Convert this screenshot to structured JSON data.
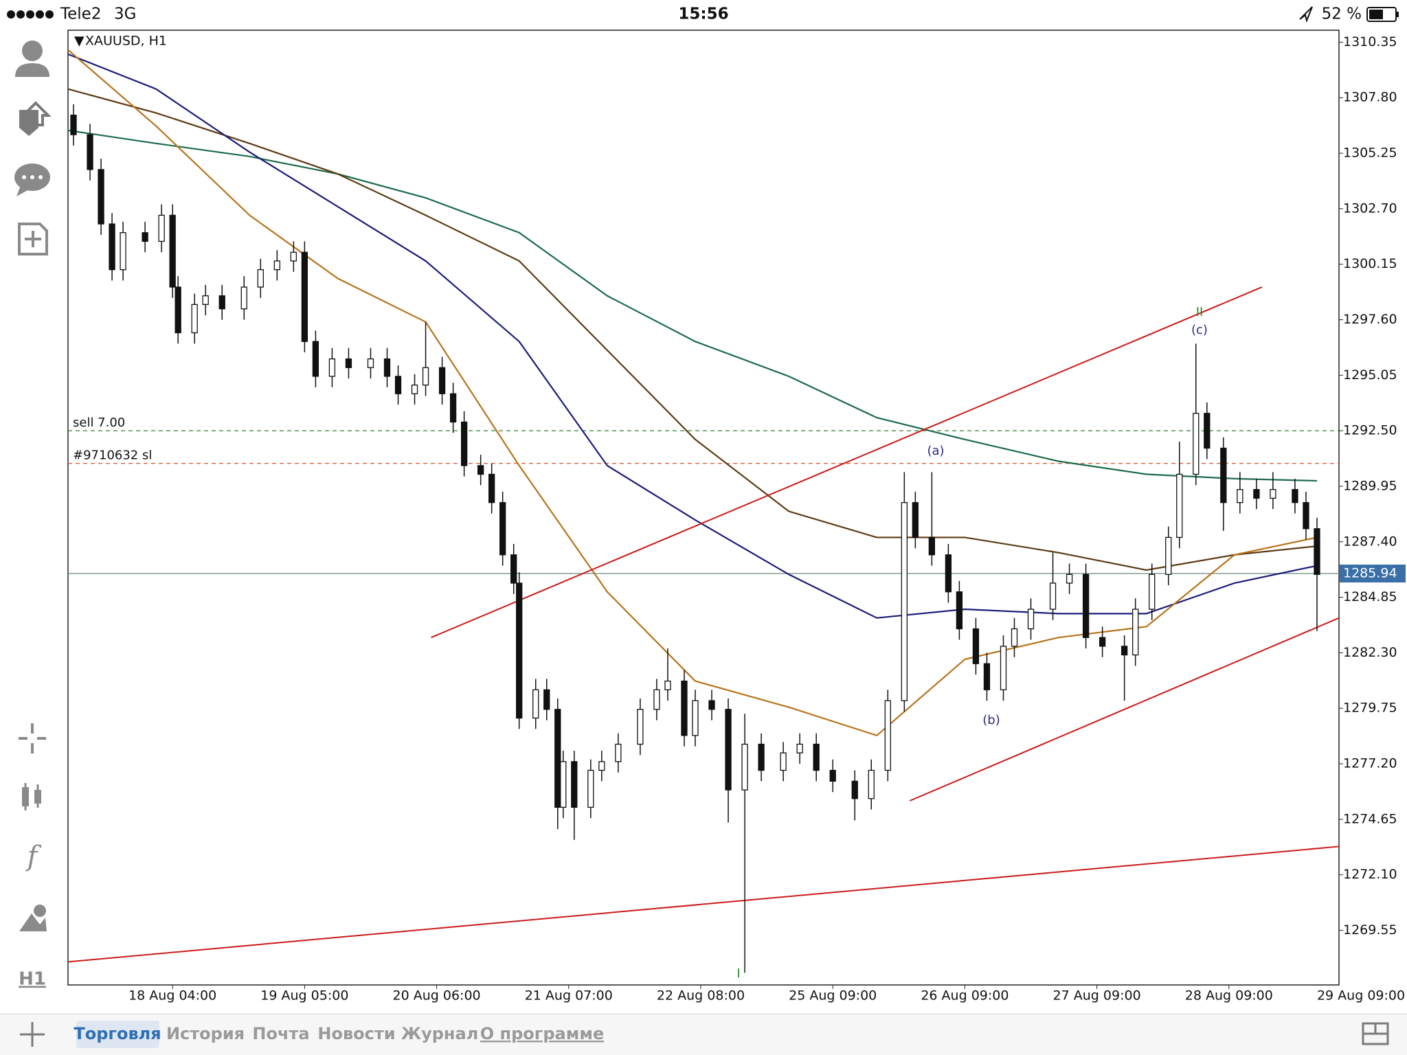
{
  "status_bar": {
    "carrier": "Tele2",
    "network": "3G",
    "time": "15:56",
    "battery": "52 %"
  },
  "sidebar": {
    "timeframe": "H1"
  },
  "chart_data": {
    "type": "candlestick",
    "title": "XAUUSD, H1",
    "xlim": [
      0,
      231
    ],
    "ylim": [
      1267.04,
      1310.9
    ],
    "yticks": [
      1310.35,
      {
        "value": 1307.8,
        "label": "1307.80"
      },
      1305.25,
      {
        "value": 1302.7,
        "label": "1302.70"
      },
      1300.15,
      {
        "value": 1297.6,
        "label": "1297.60"
      },
      1295.05,
      {
        "value": 1292.5,
        "label": "1292.50"
      },
      1289.95,
      {
        "value": 1287.4,
        "label": "1287.40"
      },
      1284.85,
      {
        "value": 1282.3,
        "label": "1282.30"
      },
      1279.75,
      {
        "value": 1277.2,
        "label": "1277.20"
      },
      1274.65,
      {
        "value": 1272.1,
        "label": "1272.10"
      },
      1269.55
    ],
    "xticks": [
      {
        "value": 19,
        "label": "18 Aug 04:00"
      },
      {
        "value": 43,
        "label": "19 Aug 05:00"
      },
      {
        "value": 67,
        "label": "20 Aug 06:00"
      },
      {
        "value": 91,
        "label": "21 Aug 07:00"
      },
      {
        "value": 115,
        "label": "22 Aug 08:00"
      },
      {
        "value": 139,
        "label": "25 Aug 09:00"
      },
      {
        "value": 163,
        "label": "26 Aug 09:00"
      },
      {
        "value": 187,
        "label": "27 Aug 09:00"
      },
      {
        "value": 211,
        "label": "28 Aug 09:00"
      },
      {
        "value": 235,
        "label": "29 Aug 09:00"
      }
    ],
    "candles": [
      [
        1,
        1307.0,
        1307.5,
        1305.6,
        1306.1
      ],
      [
        4,
        1306.1,
        1306.6,
        1304.0,
        1304.5
      ],
      [
        6,
        1304.5,
        1305.0,
        1301.5,
        1302.0
      ],
      [
        8,
        1302.0,
        1302.5,
        1299.4,
        1299.9
      ],
      [
        10,
        1299.9,
        1302.1,
        1299.4,
        1301.6
      ],
      [
        14,
        1301.6,
        1302.1,
        1300.7,
        1301.2
      ],
      [
        17,
        1301.2,
        1302.9,
        1300.7,
        1302.4
      ],
      [
        19,
        1302.4,
        1302.9,
        1298.6,
        1299.1
      ],
      [
        20,
        1299.1,
        1299.6,
        1296.5,
        1297.0
      ],
      [
        23,
        1297.0,
        1298.8,
        1296.5,
        1298.3
      ],
      [
        25,
        1298.3,
        1299.2,
        1297.8,
        1298.7
      ],
      [
        28,
        1298.7,
        1299.2,
        1297.6,
        1298.1
      ],
      [
        32,
        1298.1,
        1299.6,
        1297.6,
        1299.1
      ],
      [
        35,
        1299.1,
        1300.4,
        1298.6,
        1299.9
      ],
      [
        38,
        1299.9,
        1300.8,
        1299.4,
        1300.3
      ],
      [
        41,
        1300.3,
        1301.2,
        1299.8,
        1300.7
      ],
      [
        43,
        1300.7,
        1301.2,
        1296.1,
        1296.6
      ],
      [
        45,
        1296.6,
        1297.1,
        1294.5,
        1295.0
      ],
      [
        48,
        1295.0,
        1296.3,
        1294.5,
        1295.8
      ],
      [
        51,
        1295.8,
        1296.3,
        1294.9,
        1295.4
      ],
      [
        55,
        1295.4,
        1296.3,
        1294.9,
        1295.8
      ],
      [
        58,
        1295.8,
        1296.3,
        1294.5,
        1295.0
      ],
      [
        60,
        1295.0,
        1295.5,
        1293.7,
        1294.2
      ],
      [
        63,
        1294.2,
        1295.1,
        1293.7,
        1294.6
      ],
      [
        65,
        1294.6,
        1297.5,
        1294.1,
        1295.4
      ],
      [
        68,
        1295.4,
        1295.9,
        1293.7,
        1294.2
      ],
      [
        70,
        1294.2,
        1294.7,
        1292.4,
        1292.9
      ],
      [
        72,
        1292.9,
        1293.4,
        1290.4,
        1290.9
      ],
      [
        75,
        1290.9,
        1291.4,
        1290.0,
        1290.5
      ],
      [
        77,
        1290.5,
        1291.0,
        1288.7,
        1289.2
      ],
      [
        79,
        1289.2,
        1289.7,
        1286.3,
        1286.8
      ],
      [
        81,
        1286.8,
        1287.3,
        1285.0,
        1285.5
      ],
      [
        82,
        1285.5,
        1286.0,
        1278.8,
        1279.3
      ],
      [
        85,
        1279.3,
        1281.1,
        1278.8,
        1280.6
      ],
      [
        87,
        1280.6,
        1281.1,
        1279.2,
        1279.7
      ],
      [
        89,
        1279.7,
        1280.2,
        1274.2,
        1275.2
      ],
      [
        90,
        1275.2,
        1277.8,
        1274.7,
        1277.3
      ],
      [
        92,
        1277.3,
        1277.8,
        1273.7,
        1275.2
      ],
      [
        95,
        1275.2,
        1277.4,
        1274.7,
        1276.9
      ],
      [
        97,
        1276.9,
        1277.8,
        1276.4,
        1277.3
      ],
      [
        100,
        1277.3,
        1278.6,
        1276.8,
        1278.1
      ],
      [
        104,
        1278.1,
        1280.2,
        1277.6,
        1279.7
      ],
      [
        107,
        1279.7,
        1281.1,
        1279.2,
        1280.6
      ],
      [
        109,
        1280.6,
        1282.5,
        1280.1,
        1281.0
      ],
      [
        112,
        1281.0,
        1281.5,
        1278.0,
        1278.5
      ],
      [
        114,
        1278.5,
        1280.6,
        1278.0,
        1280.1
      ],
      [
        117,
        1280.1,
        1280.6,
        1279.2,
        1279.7
      ],
      [
        120,
        1279.7,
        1280.2,
        1274.5,
        1276.0
      ],
      [
        123,
        1276.0,
        1279.5,
        1267.6,
        1278.1
      ],
      [
        126,
        1278.1,
        1278.6,
        1276.4,
        1276.9
      ],
      [
        130,
        1276.9,
        1278.2,
        1276.4,
        1277.7
      ],
      [
        133,
        1277.7,
        1278.6,
        1277.2,
        1278.1
      ],
      [
        136,
        1278.1,
        1278.6,
        1276.4,
        1276.9
      ],
      [
        139,
        1276.9,
        1277.4,
        1275.9,
        1276.4
      ],
      [
        143,
        1276.4,
        1276.9,
        1274.6,
        1275.6
      ],
      [
        146,
        1275.6,
        1277.4,
        1275.1,
        1276.9
      ],
      [
        149,
        1276.9,
        1280.6,
        1276.4,
        1280.1
      ],
      [
        152,
        1280.1,
        1290.6,
        1279.6,
        1289.2
      ],
      [
        154,
        1289.2,
        1289.7,
        1287.1,
        1287.6
      ],
      [
        157,
        1287.6,
        1290.6,
        1286.3,
        1286.8
      ],
      [
        160,
        1286.8,
        1287.3,
        1284.6,
        1285.1
      ],
      [
        162,
        1285.1,
        1285.6,
        1282.9,
        1283.4
      ],
      [
        165,
        1283.4,
        1283.9,
        1281.3,
        1281.8
      ],
      [
        167,
        1281.8,
        1282.3,
        1280.1,
        1280.6
      ],
      [
        170,
        1280.6,
        1283.1,
        1280.1,
        1282.6
      ],
      [
        172,
        1282.6,
        1283.9,
        1282.1,
        1283.4
      ],
      [
        175,
        1283.4,
        1284.8,
        1282.9,
        1284.3
      ],
      [
        179,
        1284.3,
        1286.9,
        1283.8,
        1285.5
      ],
      [
        182,
        1285.5,
        1286.4,
        1285.0,
        1285.9
      ],
      [
        185,
        1285.9,
        1286.4,
        1282.5,
        1283.0
      ],
      [
        188,
        1283.0,
        1283.5,
        1282.1,
        1282.6
      ],
      [
        192,
        1282.6,
        1283.1,
        1280.1,
        1282.2
      ],
      [
        194,
        1282.2,
        1284.8,
        1281.7,
        1284.3
      ],
      [
        197,
        1284.3,
        1286.4,
        1283.8,
        1285.9
      ],
      [
        200,
        1285.9,
        1288.1,
        1285.4,
        1287.6
      ],
      [
        202,
        1287.6,
        1292.0,
        1287.1,
        1290.5
      ],
      [
        205,
        1290.5,
        1296.5,
        1290.0,
        1293.3
      ],
      [
        207,
        1293.3,
        1293.8,
        1291.2,
        1291.7
      ],
      [
        210,
        1291.7,
        1292.2,
        1287.9,
        1289.2
      ],
      [
        213,
        1289.2,
        1290.6,
        1288.7,
        1289.8
      ],
      [
        216,
        1289.8,
        1290.3,
        1288.9,
        1289.4
      ],
      [
        219,
        1289.4,
        1290.6,
        1288.9,
        1289.8
      ],
      [
        223,
        1289.8,
        1290.3,
        1288.7,
        1289.2
      ],
      [
        225,
        1289.2,
        1289.7,
        1287.5,
        1288.0
      ],
      [
        227,
        1288.0,
        1288.5,
        1283.3,
        1285.9
      ]
    ],
    "ma_x": [
      0,
      16,
      33,
      49,
      65,
      82,
      98,
      114,
      131,
      147,
      163,
      180,
      196,
      212,
      227
    ],
    "series": [
      {
        "color": "#1b6b4b",
        "values": [
          1306.3,
          1305.7,
          1305.1,
          1304.3,
          1303.2,
          1301.6,
          1298.7,
          1296.6,
          1295.0,
          1293.1,
          1292.1,
          1291.1,
          1290.5,
          1290.3,
          1290.2
        ]
      },
      {
        "color": "#5c3a12",
        "values": [
          1308.2,
          1307.1,
          1305.7,
          1304.3,
          1302.4,
          1300.3,
          1296.2,
          1292.1,
          1288.8,
          1287.6,
          1287.6,
          1286.9,
          1286.1,
          1286.8,
          1287.2
        ]
      },
      {
        "color": "#1a1a7a",
        "values": [
          1309.8,
          1308.2,
          1305.3,
          1302.8,
          1300.3,
          1296.6,
          1290.9,
          1288.4,
          1285.9,
          1283.9,
          1284.3,
          1284.1,
          1284.1,
          1285.5,
          1286.3
        ]
      },
      {
        "color": "#b8731a",
        "values": [
          1310.0,
          1306.5,
          1302.4,
          1299.5,
          1297.5,
          1290.9,
          1285.1,
          1281.0,
          1279.8,
          1278.5,
          1282.0,
          1283.0,
          1283.5,
          1286.8,
          1287.6
        ]
      }
    ],
    "trend_lines": [
      {
        "color": "#cc1a1a",
        "x": [
          66,
          217
        ],
        "values": [
          1283.0,
          1299.1
        ]
      },
      {
        "color": "#cc1a1a",
        "x": [
          153,
          231
        ],
        "values": [
          1275.5,
          1283.9
        ]
      },
      {
        "color": "#cc1a1a",
        "x": [
          0,
          231
        ],
        "values": [
          1268.1,
          1273.4
        ]
      }
    ],
    "levels": [
      {
        "label": "sell 7.00",
        "value": 1292.5,
        "color": "#2e7d32"
      },
      {
        "label": "#9710632 sl",
        "value": 1291.0,
        "color": "#e0603c"
      }
    ],
    "current_price": 1285.94,
    "annotations": [
      "(a)",
      "(b)",
      "(c)",
      "II",
      "I"
    ]
  },
  "tabs": [
    "Торговля",
    "История",
    "Почта",
    "Новости",
    "Журнал",
    "О программе"
  ]
}
